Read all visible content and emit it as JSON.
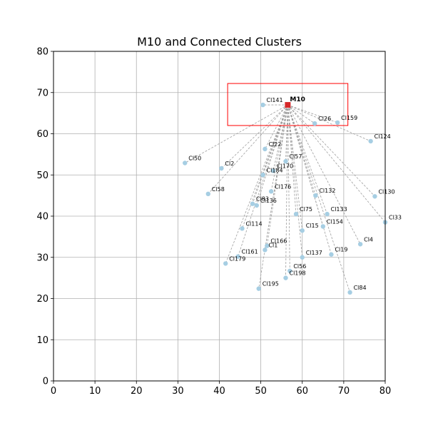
{
  "chart_data": {
    "type": "scatter",
    "title": "M10 and Connected Clusters",
    "xlabel": "",
    "ylabel": "",
    "xlim": [
      0,
      80
    ],
    "ylim": [
      0,
      80
    ],
    "xticks": [
      0,
      10,
      20,
      30,
      40,
      50,
      60,
      70,
      80
    ],
    "yticks": [
      0,
      10,
      20,
      30,
      40,
      50,
      60,
      70,
      80
    ],
    "grid": true,
    "center": {
      "label": "M10",
      "x": 56.5,
      "y": 67.0,
      "color": "#d62728"
    },
    "highlight_box": {
      "x0": 42.0,
      "x1": 71.0,
      "y0": 62.0,
      "y1": 72.2,
      "color": "#ff0000"
    },
    "point_color": "#a6cee3",
    "edge_color": "#9e9e9e",
    "clusters": [
      {
        "label": "Cl141",
        "x": 50.5,
        "y": 67.0
      },
      {
        "label": "Cl26",
        "x": 63.0,
        "y": 62.5
      },
      {
        "label": "Cl159",
        "x": 68.5,
        "y": 62.7
      },
      {
        "label": "Cl124",
        "x": 76.5,
        "y": 58.2
      },
      {
        "label": "Cl22",
        "x": 51.0,
        "y": 56.3
      },
      {
        "label": "Cl50",
        "x": 31.7,
        "y": 52.9
      },
      {
        "label": "Cl57",
        "x": 56.0,
        "y": 53.3
      },
      {
        "label": "Cl2",
        "x": 40.5,
        "y": 51.6
      },
      {
        "label": "Cl170",
        "x": 53.0,
        "y": 51.0
      },
      {
        "label": "Cl184",
        "x": 50.5,
        "y": 50.0
      },
      {
        "label": "Cl176",
        "x": 52.5,
        "y": 46.0
      },
      {
        "label": "Cl58",
        "x": 37.3,
        "y": 45.4
      },
      {
        "label": "Cl132",
        "x": 63.2,
        "y": 45.0
      },
      {
        "label": "Cl130",
        "x": 77.5,
        "y": 44.8
      },
      {
        "label": "Cl83",
        "x": 48.0,
        "y": 43.0
      },
      {
        "label": "Cl136",
        "x": 49.0,
        "y": 42.6
      },
      {
        "label": "Cl75",
        "x": 58.5,
        "y": 40.5
      },
      {
        "label": "Cl133",
        "x": 66.0,
        "y": 40.5
      },
      {
        "label": "Cl33",
        "x": 80.0,
        "y": 38.5
      },
      {
        "label": "Cl154",
        "x": 65.0,
        "y": 37.5
      },
      {
        "label": "Cl114",
        "x": 45.5,
        "y": 37.0
      },
      {
        "label": "Cl15",
        "x": 60.0,
        "y": 36.5
      },
      {
        "label": "Cl4",
        "x": 74.0,
        "y": 33.2
      },
      {
        "label": "Cl166",
        "x": 51.5,
        "y": 32.8
      },
      {
        "label": "Cl1",
        "x": 51.0,
        "y": 31.8
      },
      {
        "label": "Cl19",
        "x": 67.0,
        "y": 30.7
      },
      {
        "label": "Cl161",
        "x": 44.5,
        "y": 30.2
      },
      {
        "label": "Cl137",
        "x": 60.0,
        "y": 30.0
      },
      {
        "label": "Cl179",
        "x": 41.5,
        "y": 28.5
      },
      {
        "label": "Cl56",
        "x": 57.0,
        "y": 26.7
      },
      {
        "label": "Cl198",
        "x": 56.0,
        "y": 25.0
      },
      {
        "label": "Cl195",
        "x": 49.5,
        "y": 22.4
      },
      {
        "label": "Cl84",
        "x": 71.5,
        "y": 21.5
      }
    ]
  }
}
